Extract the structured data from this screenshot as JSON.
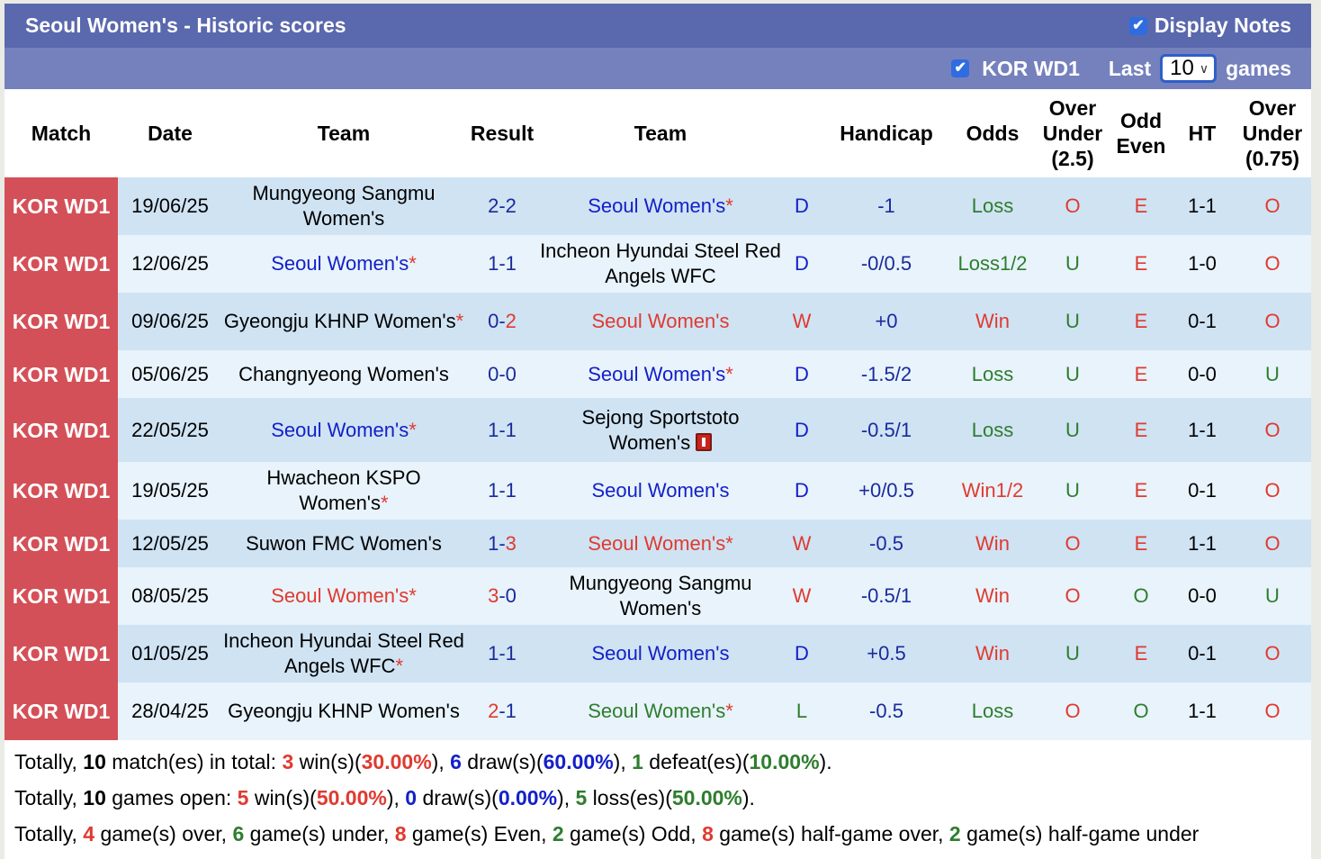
{
  "title": "Seoul Women's - Historic scores",
  "display_notes": {
    "label": "Display Notes",
    "checked": true
  },
  "filter": {
    "league_label": "KOR WD1",
    "league_checked": true,
    "last_label": "Last",
    "games_count": "10",
    "games_label": "games"
  },
  "columns": [
    "Match",
    "Date",
    "Team",
    "Result",
    "Team",
    "",
    "Handicap",
    "Odds",
    "Over Under (2.5)",
    "Odd Even",
    "HT",
    "Over Under (0.75)"
  ],
  "headers": {
    "match": "Match",
    "date": "Date",
    "home": "Team",
    "result": "Result",
    "away": "Team",
    "handicap": "Handicap",
    "odds": "Odds",
    "ou25_1": "Over",
    "ou25_2": "Under",
    "ou25_3": "(2.5)",
    "oe_1": "Odd",
    "oe_2": "Even",
    "ht": "HT",
    "ou075_1": "Over",
    "ou075_2": "Under",
    "ou075_3": "(0.75)"
  },
  "rows": [
    {
      "league": "KOR WD1",
      "date": "19/06/25",
      "home": "Mungyeong Sangmu Women's",
      "home_star": "",
      "home_color": "black",
      "hs": "2",
      "as": "2",
      "hs_color": "navy",
      "as_color": "navy",
      "away": "Seoul Women's",
      "away_star": "*",
      "away_color": "blue",
      "wdl": "D",
      "wdl_color": "blue",
      "handicap": "-1",
      "odds": "Loss",
      "odds_color": "green",
      "ou": "O",
      "ou_color": "red",
      "oe": "E",
      "oe_color": "red",
      "ht": "1-1",
      "ou2": "O",
      "ou2_color": "red"
    },
    {
      "league": "KOR WD1",
      "date": "12/06/25",
      "home": "Seoul Women's",
      "home_star": "*",
      "home_color": "blue",
      "hs": "1",
      "as": "1",
      "hs_color": "navy",
      "as_color": "navy",
      "away": "Incheon Hyundai Steel Red Angels WFC",
      "away_star": "",
      "away_color": "black",
      "wdl": "D",
      "wdl_color": "blue",
      "handicap": "-0/0.5",
      "odds": "Loss1/2",
      "odds_color": "green",
      "ou": "U",
      "ou_color": "green",
      "oe": "E",
      "oe_color": "red",
      "ht": "1-0",
      "ou2": "O",
      "ou2_color": "red"
    },
    {
      "league": "KOR WD1",
      "date": "09/06/25",
      "home": "Gyeongju KHNP Women's",
      "home_star": "*",
      "home_color": "black",
      "hs": "0",
      "as": "2",
      "hs_color": "navy",
      "as_color": "red",
      "away": "Seoul Women's",
      "away_star": "",
      "away_color": "red",
      "wdl": "W",
      "wdl_color": "red",
      "handicap": "+0",
      "odds": "Win",
      "odds_color": "red",
      "ou": "U",
      "ou_color": "green",
      "oe": "E",
      "oe_color": "red",
      "ht": "0-1",
      "ou2": "O",
      "ou2_color": "red"
    },
    {
      "league": "KOR WD1",
      "date": "05/06/25",
      "home": "Changnyeong Women's",
      "home_star": "",
      "home_color": "black",
      "hs": "0",
      "as": "0",
      "hs_color": "navy",
      "as_color": "navy",
      "away": "Seoul Women's",
      "away_star": "*",
      "away_color": "blue",
      "wdl": "D",
      "wdl_color": "blue",
      "handicap": "-1.5/2",
      "odds": "Loss",
      "odds_color": "green",
      "ou": "U",
      "ou_color": "green",
      "oe": "E",
      "oe_color": "red",
      "ht": "0-0",
      "ou2": "U",
      "ou2_color": "green"
    },
    {
      "league": "KOR WD1",
      "date": "22/05/25",
      "home": "Seoul Women's",
      "home_star": "*",
      "home_color": "blue",
      "hs": "1",
      "as": "1",
      "hs_color": "navy",
      "as_color": "navy",
      "away": "Sejong Sportstoto Women's",
      "away_star": "",
      "away_color": "black",
      "away_redcard": "1",
      "wdl": "D",
      "wdl_color": "blue",
      "handicap": "-0.5/1",
      "odds": "Loss",
      "odds_color": "green",
      "ou": "U",
      "ou_color": "green",
      "oe": "E",
      "oe_color": "red",
      "ht": "1-1",
      "ou2": "O",
      "ou2_color": "red"
    },
    {
      "league": "KOR WD1",
      "date": "19/05/25",
      "home": "Hwacheon KSPO Women's",
      "home_star": "*",
      "home_color": "black",
      "hs": "1",
      "as": "1",
      "hs_color": "navy",
      "as_color": "navy",
      "away": "Seoul Women's",
      "away_star": "",
      "away_color": "blue",
      "wdl": "D",
      "wdl_color": "blue",
      "handicap": "+0/0.5",
      "odds": "Win1/2",
      "odds_color": "red",
      "ou": "U",
      "ou_color": "green",
      "oe": "E",
      "oe_color": "red",
      "ht": "0-1",
      "ou2": "O",
      "ou2_color": "red"
    },
    {
      "league": "KOR WD1",
      "date": "12/05/25",
      "home": "Suwon FMC Women's",
      "home_star": "",
      "home_color": "black",
      "hs": "1",
      "as": "3",
      "hs_color": "navy",
      "as_color": "red",
      "away": "Seoul Women's",
      "away_star": "*",
      "away_color": "red",
      "wdl": "W",
      "wdl_color": "red",
      "handicap": "-0.5",
      "odds": "Win",
      "odds_color": "red",
      "ou": "O",
      "ou_color": "red",
      "oe": "E",
      "oe_color": "red",
      "ht": "1-1",
      "ou2": "O",
      "ou2_color": "red"
    },
    {
      "league": "KOR WD1",
      "date": "08/05/25",
      "home": "Seoul Women's",
      "home_star": "*",
      "home_color": "red",
      "hs": "3",
      "as": "0",
      "hs_color": "red",
      "as_color": "navy",
      "away": "Mungyeong Sangmu Women's",
      "away_star": "",
      "away_color": "black",
      "wdl": "W",
      "wdl_color": "red",
      "handicap": "-0.5/1",
      "odds": "Win",
      "odds_color": "red",
      "ou": "O",
      "ou_color": "red",
      "oe": "O",
      "oe_color": "green",
      "ht": "0-0",
      "ou2": "U",
      "ou2_color": "green"
    },
    {
      "league": "KOR WD1",
      "date": "01/05/25",
      "home": "Incheon Hyundai Steel Red Angels WFC",
      "home_star": "*",
      "home_color": "black",
      "hs": "1",
      "as": "1",
      "hs_color": "navy",
      "as_color": "navy",
      "away": "Seoul Women's",
      "away_star": "",
      "away_color": "blue",
      "wdl": "D",
      "wdl_color": "blue",
      "handicap": "+0.5",
      "odds": "Win",
      "odds_color": "red",
      "ou": "U",
      "ou_color": "green",
      "oe": "E",
      "oe_color": "red",
      "ht": "0-1",
      "ou2": "O",
      "ou2_color": "red"
    },
    {
      "league": "KOR WD1",
      "date": "28/04/25",
      "home": "Gyeongju KHNP Women's",
      "home_star": "",
      "home_color": "black",
      "hs": "2",
      "as": "1",
      "hs_color": "red",
      "as_color": "navy",
      "away": "Seoul Women's",
      "away_star": "*",
      "away_color": "green",
      "wdl": "L",
      "wdl_color": "green",
      "handicap": "-0.5",
      "odds": "Loss",
      "odds_color": "green",
      "ou": "O",
      "ou_color": "red",
      "oe": "O",
      "oe_color": "green",
      "ht": "1-1",
      "ou2": "O",
      "ou2_color": "red"
    }
  ],
  "summary": {
    "line1": {
      "p1": "Totally, ",
      "total": "10",
      "p2": " match(es) in total: ",
      "wins": "3",
      "p3": " win(s)(",
      "win_pct": "30.00%",
      "p4": "), ",
      "draws": "6",
      "p5": " draw(s)(",
      "draw_pct": "60.00%",
      "p6": "), ",
      "defeats": "1",
      "p7": " defeat(es)(",
      "defeat_pct": "10.00%",
      "p8": ")."
    },
    "line2": {
      "p1": "Totally, ",
      "total": "10",
      "p2": " games open: ",
      "wins": "5",
      "p3": " win(s)(",
      "win_pct": "50.00%",
      "p4": "), ",
      "draws": "0",
      "p5": " draw(s)(",
      "draw_pct": "0.00%",
      "p6": "), ",
      "losses": "5",
      "p7": " loss(es)(",
      "loss_pct": "50.00%",
      "p8": ")."
    },
    "line3": {
      "p1": "Totally, ",
      "over": "4",
      "p2": " game(s) over, ",
      "under": "6",
      "p3": " game(s) under, ",
      "even": "8",
      "p4": " game(s) Even, ",
      "odd": "2",
      "p5": " game(s) Odd, ",
      "hg_over": "8",
      "p6": " game(s) half-game over, ",
      "hg_under": "2",
      "p7": " game(s) half-game under"
    }
  },
  "colors": {
    "title_bg": "#5a68ad",
    "filter_bg": "#7581bd",
    "league_bg": "#d45058",
    "row_odd": "#cfe3f3",
    "row_even": "#e8f3fb",
    "red": "#e03a2f",
    "blue": "#1420c8",
    "green": "#2e7d2e"
  }
}
